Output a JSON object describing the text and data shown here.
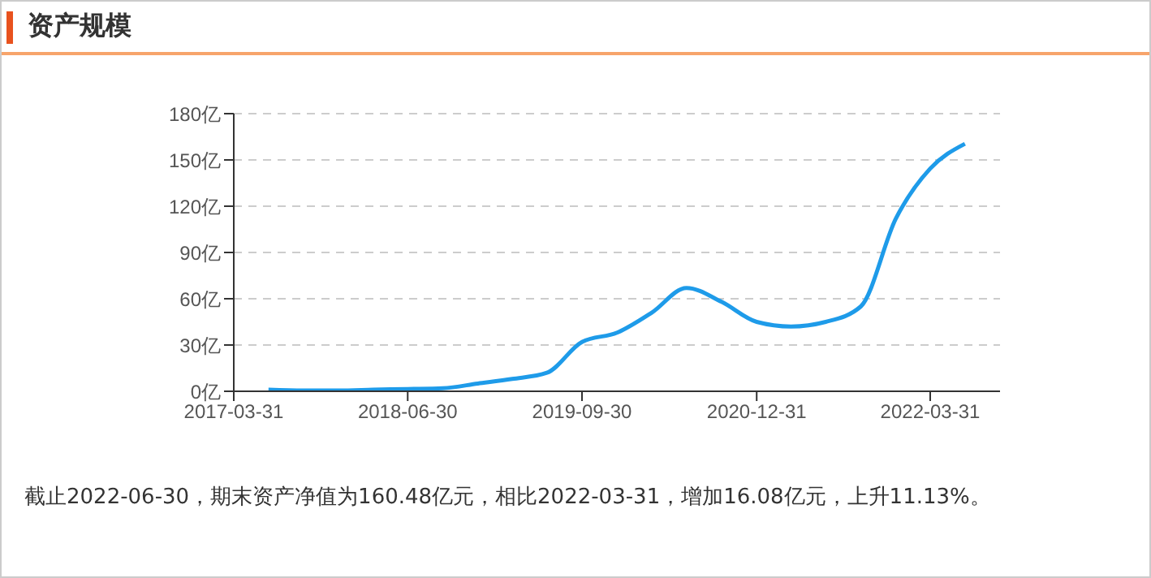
{
  "chart_data": {
    "type": "line",
    "title": "资产规模",
    "x": [
      "2017-06-30",
      "2017-09-30",
      "2017-12-31",
      "2018-03-31",
      "2018-06-30",
      "2018-09-30",
      "2018-12-31",
      "2019-03-31",
      "2019-06-30",
      "2019-09-30",
      "2019-12-31",
      "2020-03-31",
      "2020-06-30",
      "2020-09-30",
      "2020-12-31",
      "2021-03-31",
      "2021-06-30",
      "2021-09-30",
      "2021-12-31",
      "2022-03-31",
      "2022-06-30"
    ],
    "series": [
      {
        "color": "#1e9be9",
        "values": [
          1,
          0.5,
          0.5,
          1,
          1.5,
          2,
          5,
          8,
          12,
          32,
          38,
          51,
          67,
          58,
          45,
          42,
          45,
          55,
          112,
          144.4,
          160.48
        ]
      }
    ],
    "xlim": [
      "2017-03-31",
      "2022-09-30"
    ],
    "xticks": [
      "2017-03-31",
      "2018-06-30",
      "2019-09-30",
      "2020-12-31",
      "2022-03-31"
    ],
    "ylim": [
      0,
      180
    ],
    "yticks": [
      {
        "value": 0,
        "label": "0亿"
      },
      {
        "value": 30,
        "label": "30亿"
      },
      {
        "value": 60,
        "label": "60亿"
      },
      {
        "value": 90,
        "label": "90亿"
      },
      {
        "value": 120,
        "label": "120亿"
      },
      {
        "value": 150,
        "label": "150亿"
      },
      {
        "value": 180,
        "label": "180亿"
      }
    ],
    "grid": "y",
    "marker": "none",
    "line_style": "solid",
    "legend": false,
    "annotations": [
      "截止2022-06-30，期末资产净值为160.48亿元，相比2022-03-31，增加16.08亿元，上升11.13%。"
    ]
  }
}
